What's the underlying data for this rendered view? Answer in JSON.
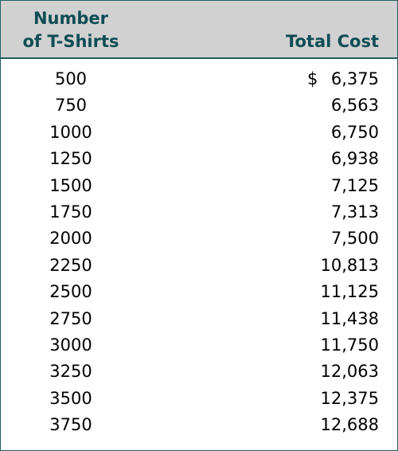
{
  "table": {
    "header": {
      "col1_line1": "Number",
      "col1_line2": "of T-Shirts",
      "col2": "Total Cost"
    },
    "currency_symbol": "$",
    "rows": [
      {
        "qty": "500",
        "cost": "6,375"
      },
      {
        "qty": "750",
        "cost": "6,563"
      },
      {
        "qty": "1000",
        "cost": "6,750"
      },
      {
        "qty": "1250",
        "cost": "6,938"
      },
      {
        "qty": "1500",
        "cost": "7,125"
      },
      {
        "qty": "1750",
        "cost": "7,313"
      },
      {
        "qty": "2000",
        "cost": "7,500"
      },
      {
        "qty": "2250",
        "cost": "10,813"
      },
      {
        "qty": "2500",
        "cost": "11,125"
      },
      {
        "qty": "2750",
        "cost": "11,438"
      },
      {
        "qty": "3000",
        "cost": "11,750"
      },
      {
        "qty": "3250",
        "cost": "12,063"
      },
      {
        "qty": "3500",
        "cost": "12,375"
      },
      {
        "qty": "3750",
        "cost": "12,688"
      }
    ],
    "colors": {
      "header_bg": "#d1d1d1",
      "header_text": "#0f4d55",
      "border": "#1f5f63"
    }
  }
}
